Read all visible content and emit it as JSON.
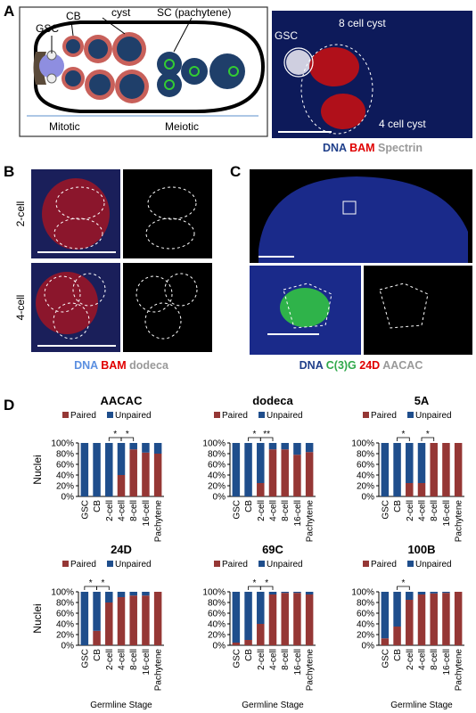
{
  "panel_labels": [
    "A",
    "B",
    "C",
    "D"
  ],
  "panel_a": {
    "schematic": {
      "labels": [
        "GSC",
        "CB",
        "cyst",
        "SC (pachytene)"
      ],
      "axis": [
        "Mitotic",
        "Meiotic"
      ]
    },
    "image": {
      "labels": [
        "GSC",
        "8 cell cyst",
        "4 cell cyst"
      ],
      "stain": [
        "DNA",
        "BAM",
        "Spectrin"
      ]
    }
  },
  "panel_b": {
    "rows": [
      "2-cell",
      "4-cell"
    ],
    "stain": [
      "DNA",
      "BAM",
      "dodeca"
    ]
  },
  "panel_c": {
    "stain": [
      "DNA",
      "C(3)G",
      "24D",
      "AACAC"
    ]
  },
  "chart_data": [
    {
      "type": "bar",
      "stacked": true,
      "title": "AACAC",
      "categories": [
        "GSC",
        "CB",
        "2-cell",
        "4-cell",
        "8-cell",
        "16-cell",
        "Pachytene"
      ],
      "series": [
        {
          "name": "Paired",
          "color": "#953735",
          "values": [
            0,
            0,
            0,
            40,
            88,
            82,
            80
          ]
        },
        {
          "name": "Unpaired",
          "color": "#1f4e8c",
          "values": [
            100,
            100,
            100,
            60,
            12,
            18,
            20
          ]
        }
      ],
      "ylim": [
        0,
        100
      ],
      "yticks": [
        {
          "value": 0,
          "label": "0%"
        },
        {
          "value": 20,
          "label": "20%"
        },
        {
          "value": 40,
          "label": "40%"
        },
        {
          "value": 60,
          "label": "60%"
        },
        {
          "value": 80,
          "label": "80%"
        },
        {
          "value": 100,
          "label": "100%"
        }
      ],
      "ylabel": "Nuclei",
      "significance": [
        {
          "label": "*",
          "between": [
            2,
            3
          ]
        },
        {
          "label": "*",
          "between": [
            3,
            4
          ]
        }
      ]
    },
    {
      "type": "bar",
      "stacked": true,
      "title": "dodeca",
      "categories": [
        "GSC",
        "CB",
        "2-cell",
        "4-cell",
        "8-cell",
        "16-cell",
        "Pachytene"
      ],
      "series": [
        {
          "name": "Paired",
          "color": "#953735",
          "values": [
            0,
            0,
            25,
            88,
            88,
            78,
            83
          ]
        },
        {
          "name": "Unpaired",
          "color": "#1f4e8c",
          "values": [
            100,
            100,
            75,
            12,
            12,
            22,
            17
          ]
        }
      ],
      "ylim": [
        0,
        100
      ],
      "yticks": [
        {
          "value": 0,
          "label": "0%"
        },
        {
          "value": 20,
          "label": "20%"
        },
        {
          "value": 40,
          "label": "40%"
        },
        {
          "value": 60,
          "label": "60%"
        },
        {
          "value": 80,
          "label": "80%"
        },
        {
          "value": 100,
          "label": "100%"
        }
      ],
      "significance": [
        {
          "label": "*",
          "between": [
            1,
            2
          ]
        },
        {
          "label": "**",
          "between": [
            2,
            3
          ]
        }
      ]
    },
    {
      "type": "bar",
      "stacked": true,
      "title": "5A",
      "categories": [
        "GSC",
        "CB",
        "2-cell",
        "4-cell",
        "8-cell",
        "16-cell",
        "Pachytene"
      ],
      "series": [
        {
          "name": "Paired",
          "color": "#953735",
          "values": [
            0,
            0,
            25,
            25,
            100,
            100,
            100
          ]
        },
        {
          "name": "Unpaired",
          "color": "#1f4e8c",
          "values": [
            100,
            100,
            75,
            75,
            0,
            0,
            0
          ]
        }
      ],
      "ylim": [
        0,
        100
      ],
      "yticks": [
        {
          "value": 0,
          "label": "0%"
        },
        {
          "value": 20,
          "label": "20%"
        },
        {
          "value": 40,
          "label": "40%"
        },
        {
          "value": 60,
          "label": "60%"
        },
        {
          "value": 80,
          "label": "80%"
        },
        {
          "value": 100,
          "label": "100%"
        }
      ],
      "significance": [
        {
          "label": "*",
          "between": [
            1,
            2
          ]
        },
        {
          "label": "*",
          "between": [
            3,
            4
          ]
        }
      ]
    },
    {
      "type": "bar",
      "stacked": true,
      "title": "24D",
      "categories": [
        "GSC",
        "CB",
        "2-cell",
        "4-cell",
        "8-cell",
        "16-cell",
        "Pachytene"
      ],
      "series": [
        {
          "name": "Paired",
          "color": "#953735",
          "values": [
            0,
            27,
            80,
            90,
            93,
            93,
            100
          ]
        },
        {
          "name": "Unpaired",
          "color": "#1f4e8c",
          "values": [
            100,
            73,
            20,
            10,
            7,
            7,
            0
          ]
        }
      ],
      "ylim": [
        0,
        100
      ],
      "yticks": [
        {
          "value": 0,
          "label": "0%"
        },
        {
          "value": 20,
          "label": "20%"
        },
        {
          "value": 40,
          "label": "40%"
        },
        {
          "value": 60,
          "label": "60%"
        },
        {
          "value": 80,
          "label": "80%"
        },
        {
          "value": 100,
          "label": "100%"
        }
      ],
      "ylabel": "Nuclei",
      "xlabel": "Germline Stage",
      "significance": [
        {
          "label": "*",
          "between": [
            0,
            1
          ]
        },
        {
          "label": "*",
          "between": [
            1,
            2
          ]
        }
      ]
    },
    {
      "type": "bar",
      "stacked": true,
      "title": "69C",
      "categories": [
        "GSC",
        "CB",
        "2-cell",
        "4-cell",
        "8-cell",
        "16-cell",
        "Pachytene"
      ],
      "series": [
        {
          "name": "Paired",
          "color": "#953735",
          "values": [
            5,
            10,
            40,
            95,
            98,
            98,
            95
          ]
        },
        {
          "name": "Unpaired",
          "color": "#1f4e8c",
          "values": [
            95,
            90,
            60,
            5,
            2,
            2,
            5
          ]
        }
      ],
      "ylim": [
        0,
        100
      ],
      "yticks": [
        {
          "value": 0,
          "label": "0%"
        },
        {
          "value": 20,
          "label": "20%"
        },
        {
          "value": 40,
          "label": "40%"
        },
        {
          "value": 60,
          "label": "60%"
        },
        {
          "value": 80,
          "label": "80%"
        },
        {
          "value": 100,
          "label": "100%"
        }
      ],
      "xlabel": "Germline Stage",
      "significance": [
        {
          "label": "*",
          "between": [
            1,
            2
          ]
        },
        {
          "label": "*",
          "between": [
            2,
            3
          ]
        }
      ]
    },
    {
      "type": "bar",
      "stacked": true,
      "title": "100B",
      "categories": [
        "GSC",
        "CB",
        "2-cell",
        "4-cell",
        "8-cell",
        "16-cell",
        "Pachytene"
      ],
      "series": [
        {
          "name": "Paired",
          "color": "#953735",
          "values": [
            13,
            35,
            85,
            95,
            97,
            98,
            100
          ]
        },
        {
          "name": "Unpaired",
          "color": "#1f4e8c",
          "values": [
            87,
            65,
            15,
            5,
            3,
            2,
            0
          ]
        }
      ],
      "ylim": [
        0,
        100
      ],
      "yticks": [
        {
          "value": 0,
          "label": "0%"
        },
        {
          "value": 20,
          "label": "20%"
        },
        {
          "value": 40,
          "label": "40%"
        },
        {
          "value": 60,
          "label": "60%"
        },
        {
          "value": 80,
          "label": "80%"
        },
        {
          "value": 100,
          "label": "100%"
        }
      ],
      "xlabel": "Germline Stage",
      "significance": [
        {
          "label": "*",
          "between": [
            1,
            2
          ]
        }
      ]
    }
  ]
}
